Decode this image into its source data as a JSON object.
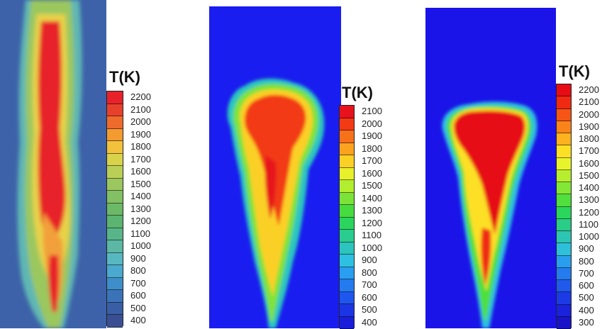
{
  "panels": [
    {
      "legend": {
        "title": "T(K)",
        "labels": [
          "2200",
          "2100",
          "2000",
          "1900",
          "1800",
          "1700",
          "1600",
          "1500",
          "1400",
          "1300",
          "1200",
          "1100",
          "1000",
          "900",
          "800",
          "700",
          "600",
          "500",
          "400"
        ],
        "colors": [
          "#e8222a",
          "#e8412b",
          "#ef6b2b",
          "#f39a31",
          "#f2c23d",
          "#d8d34a",
          "#b9cf57",
          "#9bc75f",
          "#82c063",
          "#6cb967",
          "#5bb46f",
          "#58b589",
          "#5cb8a4",
          "#57b8c1",
          "#4aa9cf",
          "#3e8fc9",
          "#3a73b8",
          "#3a5ea5",
          "#3a4f93"
        ]
      }
    },
    {
      "legend": {
        "title": "T(K)",
        "labels": [
          "2100",
          "2000",
          "1900",
          "1800",
          "1700",
          "1600",
          "1500",
          "1400",
          "1300",
          "1200",
          "1100",
          "1000",
          "900",
          "800",
          "700",
          "600",
          "500",
          "400"
        ],
        "colors": [
          "#e6121c",
          "#f23a14",
          "#f7701a",
          "#fba31f",
          "#fbd025",
          "#e7f02b",
          "#b2ed2f",
          "#7be338",
          "#47dc3e",
          "#2ad45d",
          "#2acc8f",
          "#2cc4bd",
          "#2ec0e0",
          "#2a9ef0",
          "#247bf0",
          "#1f56ee",
          "#1c35e4",
          "#1a1dda"
        ]
      }
    },
    {
      "legend": {
        "title": "T(K)",
        "labels": [
          "2200",
          "2100",
          "2000",
          "1900",
          "1800",
          "1700",
          "1600",
          "1500",
          "1400",
          "1300",
          "1200",
          "1100",
          "1000",
          "900",
          "800",
          "700",
          "600",
          "500",
          "400",
          "300"
        ],
        "colors": [
          "#e60d14",
          "#f02a12",
          "#f75515",
          "#fb841a",
          "#fdb21f",
          "#fde026",
          "#e8f42b",
          "#b6ee2f",
          "#83e735",
          "#50df3c",
          "#2ad65c",
          "#2acd88",
          "#2cc5b3",
          "#2ebfda",
          "#2a9eee",
          "#247cef",
          "#205aec",
          "#1c3be6",
          "#1a22dc",
          "#1a14c8"
        ]
      }
    }
  ]
}
